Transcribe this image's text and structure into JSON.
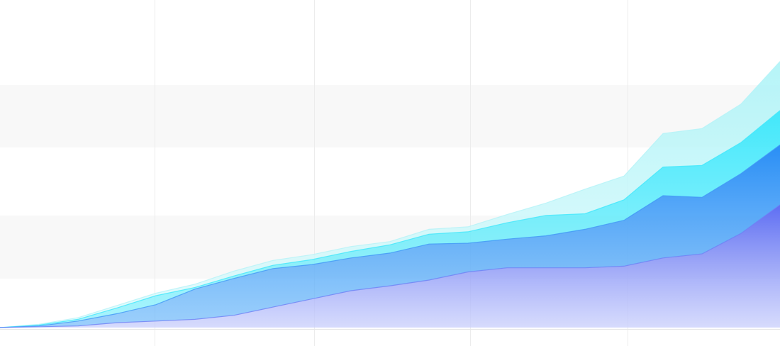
{
  "chart_data": {
    "type": "area",
    "stacked": true,
    "grid": true,
    "legend": "none",
    "x": [
      0,
      5,
      10,
      15,
      20,
      25,
      30,
      35,
      40,
      45,
      50,
      55,
      60,
      65,
      70,
      75,
      80,
      85,
      90,
      95,
      100
    ],
    "xlim": [
      0,
      100
    ],
    "ylim": [
      0,
      400
    ],
    "series": [
      {
        "color": "#6c7ff5",
        "values": [
          0,
          1,
          2,
          6,
          8,
          10,
          15,
          25,
          35,
          45,
          51,
          58,
          68,
          73,
          73,
          73,
          75,
          85,
          90,
          115,
          150
        ]
      },
      {
        "color": "#3f96f6",
        "values": [
          0,
          1,
          6,
          11,
          20,
          37,
          45,
          47,
          42,
          40,
          40,
          44,
          35,
          35,
          39,
          47,
          56,
          76,
          69,
          73,
          73
        ]
      },
      {
        "color": "#3fe7fb",
        "values": [
          0,
          1,
          2,
          7,
          11,
          2,
          3,
          4,
          6,
          8,
          10,
          12,
          14,
          20,
          25,
          19,
          25,
          35,
          39,
          38,
          42
        ]
      },
      {
        "color": "#b4f3f7",
        "values": [
          0,
          1,
          2,
          3,
          3,
          4,
          6,
          6,
          6,
          6,
          4,
          6,
          6,
          10,
          15,
          30,
          29,
          41,
          45,
          47,
          60
        ]
      }
    ]
  }
}
